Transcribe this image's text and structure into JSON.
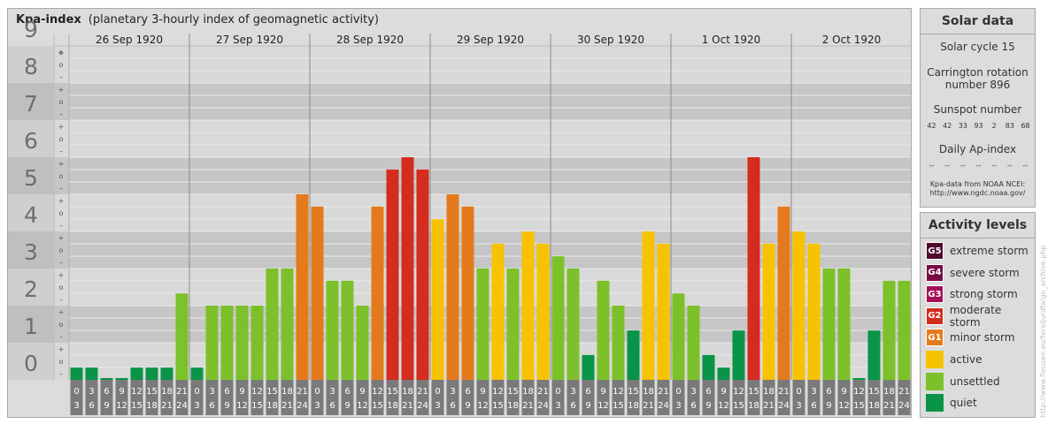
{
  "title": "Kpa-index",
  "subtitle": "(planetary 3-hourly index of geomagnetic activity)",
  "chart_data": {
    "type": "bar",
    "y_ticks": [
      "0",
      "1",
      "2",
      "3",
      "4",
      "5",
      "6",
      "7",
      "8",
      "9"
    ],
    "sub_ticks": [
      "–",
      "o",
      "+"
    ],
    "ylim": [
      0,
      9
    ],
    "days": [
      "26 Sep 1920",
      "27 Sep 1920",
      "28 Sep 1920",
      "29 Sep 1920",
      "30 Sep 1920",
      "1 Oct 1920",
      "2 Oct 1920"
    ],
    "interval_top": [
      "0",
      "3",
      "6",
      "9",
      "12",
      "15",
      "18",
      "21"
    ],
    "interval_bottom": [
      "3",
      "6",
      "9",
      "12",
      "15",
      "18",
      "21",
      "24"
    ],
    "values": [
      [
        0.33,
        0.33,
        0,
        0,
        0.33,
        0.33,
        0.33,
        2.33
      ],
      [
        0.33,
        2,
        2,
        2,
        2,
        3,
        3,
        5
      ],
      [
        4.67,
        2.67,
        2.67,
        2,
        4.67,
        5.67,
        6,
        5.67
      ],
      [
        4.33,
        5,
        4.67,
        3,
        3.67,
        3,
        4,
        3.67
      ],
      [
        3.33,
        3,
        0.67,
        2.67,
        2,
        1.33,
        4,
        3.67
      ],
      [
        2.33,
        2,
        0.67,
        0.33,
        1.33,
        6,
        3.67,
        4.67
      ],
      [
        4,
        3.67,
        3,
        3,
        0,
        1.33,
        2.67,
        2.67
      ]
    ]
  },
  "colors": {
    "quiet": "#0a9448",
    "unsettled": "#7cc129",
    "active": "#f7c300",
    "minor": "#e47a1b",
    "moderate": "#d42c1e",
    "strong": "#a70d5a",
    "severe": "#7a0a45",
    "extreme": "#52092f"
  },
  "solar": {
    "title": "Solar data",
    "cycle": "Solar cycle 15",
    "carrington_1": "Carrington rotation",
    "carrington_2": "number 896",
    "sunspot_label": "Sunspot number",
    "sunspots": [
      "42",
      "42",
      "33",
      "93",
      "2",
      "83",
      "68"
    ],
    "ap_label": "Daily Ap-index",
    "ap_values": [
      "--",
      "--",
      "--",
      "--",
      "--",
      "--",
      "--"
    ],
    "source_1": "Kpa-data from NOAA NCEI:",
    "source_2": "http://www.ngdc.noaa.gov/"
  },
  "levels": {
    "title": "Activity levels",
    "items": [
      {
        "code": "G5",
        "label": "extreme storm",
        "color": "#52092f"
      },
      {
        "code": "G4",
        "label": "severe storm",
        "color": "#7a0a45"
      },
      {
        "code": "G3",
        "label": "strong storm",
        "color": "#a70d5a"
      },
      {
        "code": "G2",
        "label": "moderate storm",
        "color": "#d42c1e"
      },
      {
        "code": "G1",
        "label": "minor storm",
        "color": "#e47a1b"
      },
      {
        "code": "",
        "label": "active",
        "color": "#f7c300"
      },
      {
        "code": "",
        "label": "unsettled",
        "color": "#7cc129"
      },
      {
        "code": "",
        "label": "quiet",
        "color": "#0a9448"
      }
    ]
  },
  "credit": "http://www.fleusen.eu/feraljurdfa/go_archive.php"
}
